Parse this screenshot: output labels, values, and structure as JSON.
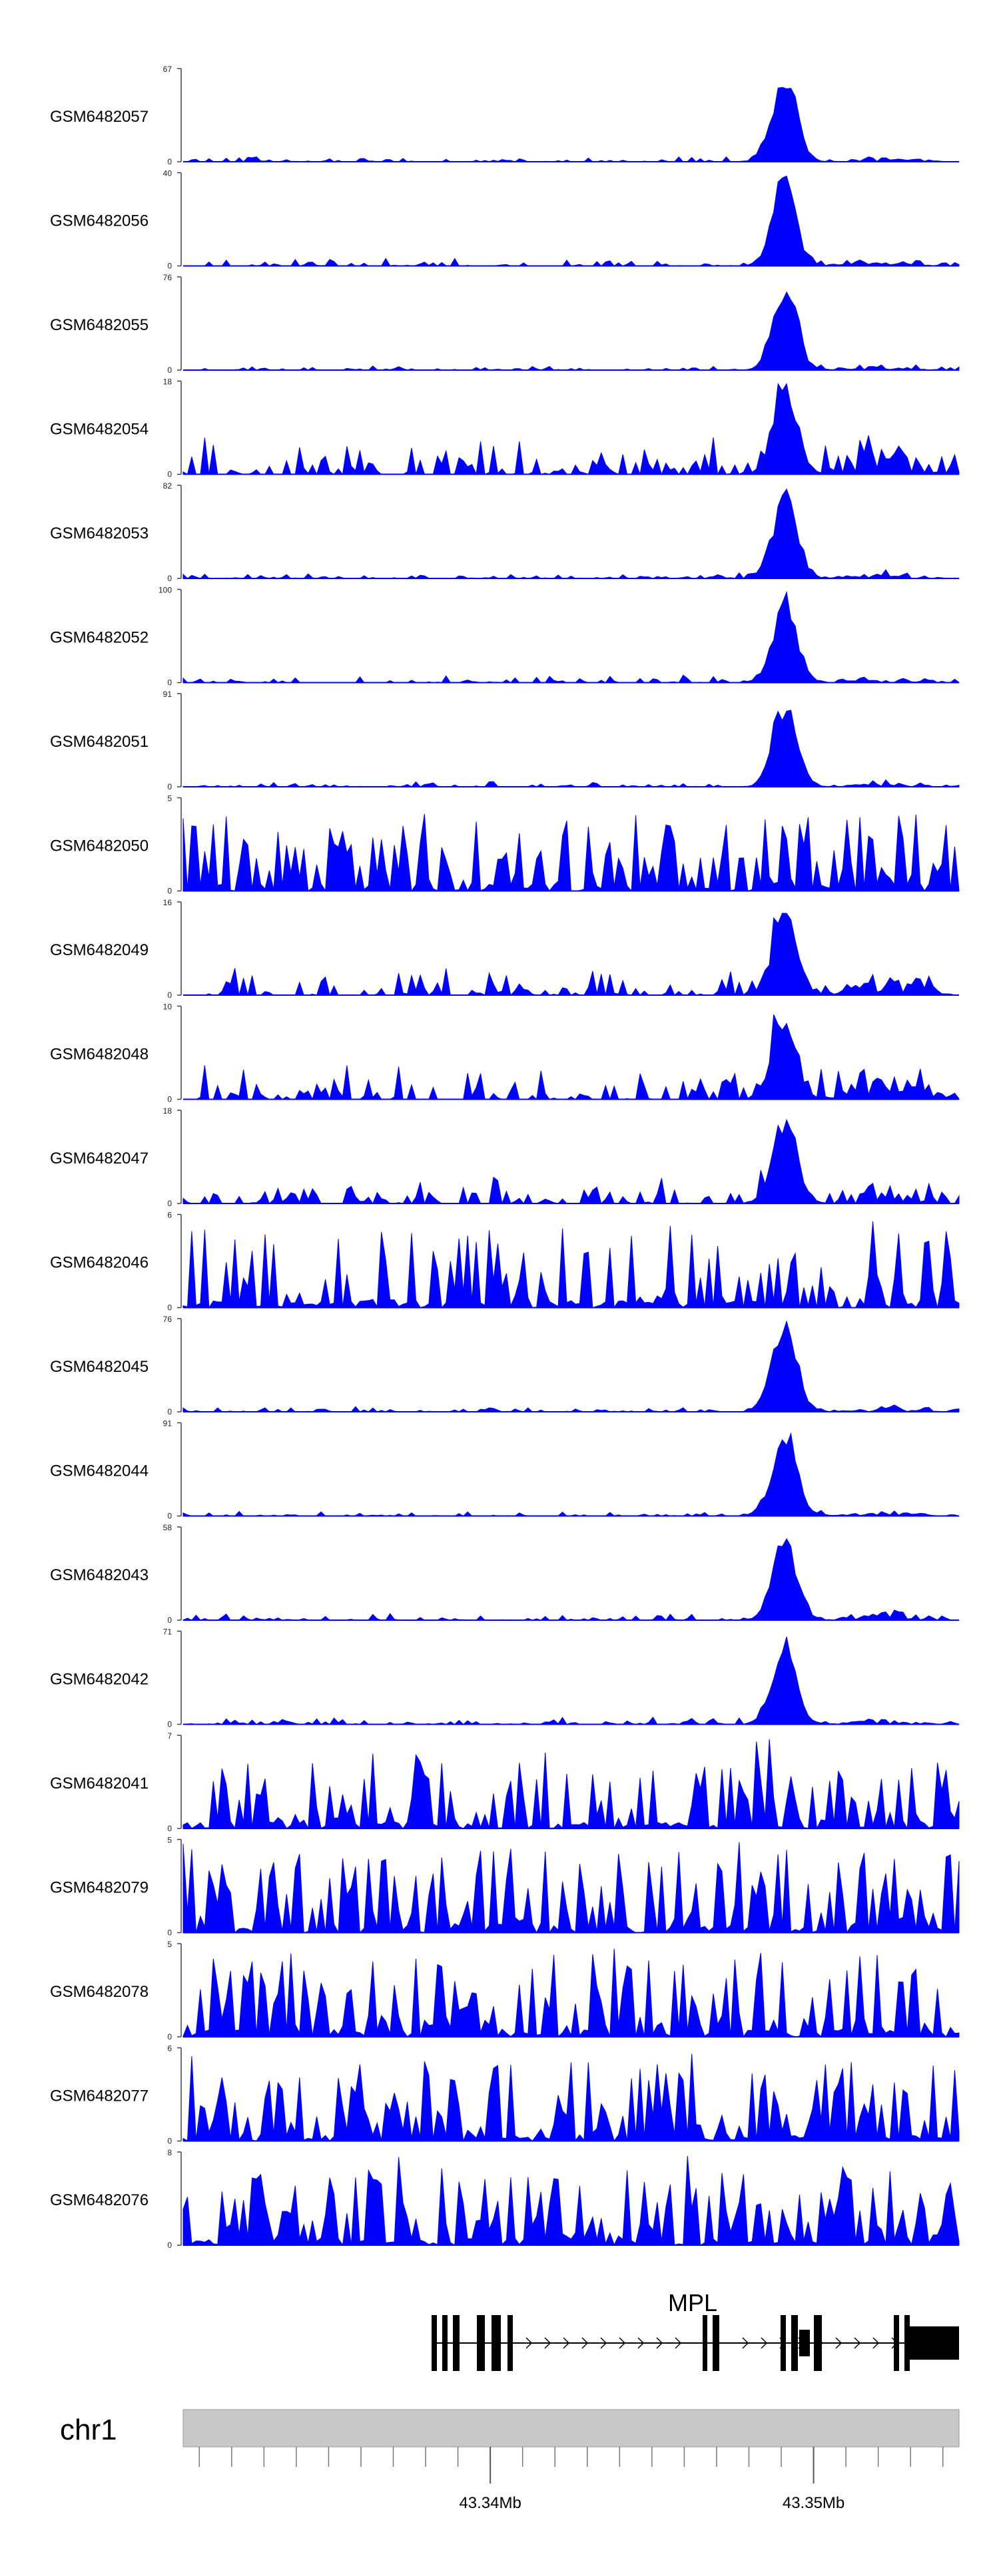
{
  "chart_data": {
    "type": "area",
    "description": "ChIP/ATAC coverage tracks over MPL locus",
    "colors": {
      "signal": "#0000ff",
      "axis": "#444444",
      "ideogram": "#c8c8c8",
      "gene": "#000000"
    },
    "x_axis": {
      "range_mb": [
        43.3305,
        43.3545
      ],
      "ticks_mb": [
        43.34,
        43.35
      ],
      "tick_labels": [
        "43.34Mb",
        "43.35Mb"
      ]
    },
    "chromosome": "chr1",
    "gene": {
      "name": "MPL"
    },
    "tracks": [
      {
        "name": "GSM6482057",
        "ymax": 67,
        "ymin": 0,
        "profile": "peak",
        "noise": 0.03
      },
      {
        "name": "GSM6482056",
        "ymax": 40,
        "ymin": 0,
        "profile": "peak",
        "noise": 0.04
      },
      {
        "name": "GSM6482055",
        "ymax": 76,
        "ymin": 0,
        "profile": "peak",
        "noise": 0.03
      },
      {
        "name": "GSM6482054",
        "ymax": 18,
        "ymin": 0,
        "profile": "peak",
        "noise": 0.2
      },
      {
        "name": "GSM6482053",
        "ymax": 82,
        "ymin": 0,
        "profile": "peak",
        "noise": 0.03
      },
      {
        "name": "GSM6482052",
        "ymax": 100,
        "ymin": 0,
        "profile": "peak",
        "noise": 0.04
      },
      {
        "name": "GSM6482051",
        "ymax": 91,
        "ymin": 0,
        "profile": "peak",
        "noise": 0.03
      },
      {
        "name": "GSM6482050",
        "ymax": 5,
        "ymin": 0,
        "profile": "noise",
        "noise": 0.5
      },
      {
        "name": "GSM6482049",
        "ymax": 16,
        "ymin": 0,
        "profile": "peak",
        "noise": 0.15
      },
      {
        "name": "GSM6482048",
        "ymax": 10,
        "ymin": 0,
        "profile": "peak",
        "noise": 0.2
      },
      {
        "name": "GSM6482047",
        "ymax": 18,
        "ymin": 0,
        "profile": "peak",
        "noise": 0.15
      },
      {
        "name": "GSM6482046",
        "ymax": 6,
        "ymin": 0,
        "profile": "noise",
        "noise": 0.55
      },
      {
        "name": "GSM6482045",
        "ymax": 76,
        "ymin": 0,
        "profile": "peak",
        "noise": 0.03
      },
      {
        "name": "GSM6482044",
        "ymax": 91,
        "ymin": 0,
        "profile": "peak",
        "noise": 0.03
      },
      {
        "name": "GSM6482043",
        "ymax": 58,
        "ymin": 0,
        "profile": "peak",
        "noise": 0.04
      },
      {
        "name": "GSM6482042",
        "ymax": 71,
        "ymin": 0,
        "profile": "peak",
        "noise": 0.04
      },
      {
        "name": "GSM6482041",
        "ymax": 7,
        "ymin": 0,
        "profile": "noise",
        "noise": 0.4
      },
      {
        "name": "GSM6482079",
        "ymax": 5,
        "ymin": 0,
        "profile": "noise",
        "noise": 0.6
      },
      {
        "name": "GSM6482078",
        "ymax": 5,
        "ymin": 0,
        "profile": "noise",
        "noise": 0.6
      },
      {
        "name": "GSM6482077",
        "ymax": 6,
        "ymin": 0,
        "profile": "noise",
        "noise": 0.55
      },
      {
        "name": "GSM6482076",
        "ymax": 8,
        "ymin": 0,
        "profile": "noise",
        "noise": 0.45
      }
    ]
  }
}
